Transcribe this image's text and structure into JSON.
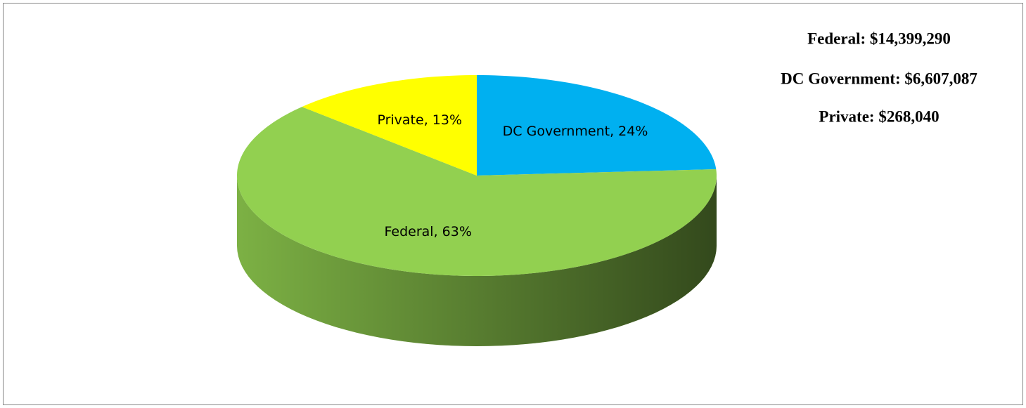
{
  "chart_data": {
    "type": "pie",
    "categories": [
      "DC Government",
      "Federal",
      "Private"
    ],
    "values": [
      24,
      63,
      13
    ],
    "value_labels": [
      "DC Government, 24%",
      "Federal, 63%",
      "Private, 13%"
    ],
    "colors": [
      "#00b0f0",
      "#92d050",
      "#ffff00"
    ],
    "annotations": [
      "Federal: $14,399,290",
      "DC Government: $6,607,087",
      "Private: $268,040"
    ]
  }
}
